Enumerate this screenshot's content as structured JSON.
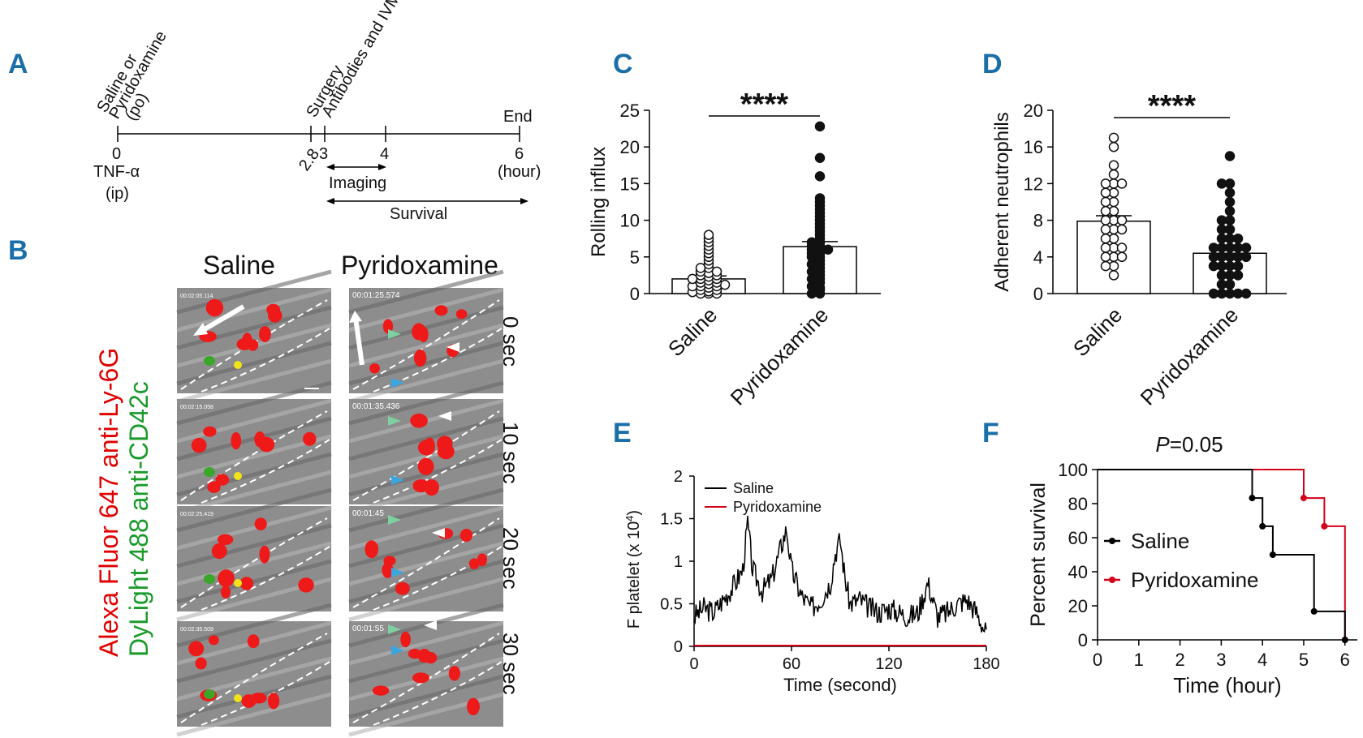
{
  "panel_letters": {
    "a": "A",
    "b": "B",
    "c": "C",
    "d": "D",
    "e": "E",
    "f": "F"
  },
  "timeline": {
    "top_labels": {
      "treat1": "Saline or",
      "treat2": "Pyridoxamine",
      "treat3": "(po)",
      "surgery": "Surgery",
      "antibodies": "Antibodies and IVM",
      "end": "End"
    },
    "ticks": [
      "0",
      "2.8",
      "3",
      "4",
      "6"
    ],
    "unit": "(hour)",
    "tnf": "TNF-α",
    "ip": "(ip)",
    "imaging": "Imaging",
    "survival": "Survival"
  },
  "microscopy": {
    "col_saline": "Saline",
    "col_pyridoxamine": "Pyridoxamine",
    "rows": [
      "0 sec",
      "10 sec",
      "20 sec",
      "30 sec"
    ],
    "stain_red": "Alexa Fluor 647 anti-Ly-6G",
    "stain_green": "DyLight 488 anti-CD42c",
    "stamps_saline": [
      "00:02:05.114",
      "00:02:15.058",
      "00:02:25.419",
      "00:02:35.509"
    ],
    "stamps_pyridoxamine": [
      "00:01:25.574",
      "00:01:35.436",
      "00:01:45",
      "00:01:55"
    ]
  },
  "chart_data": [
    {
      "panel": "C",
      "type": "bar",
      "categories": [
        "Saline",
        "Pyridoxamine"
      ],
      "values": [
        2.0,
        6.4
      ],
      "sem": [
        0.4,
        0.7
      ],
      "ylabel": "Rolling influx",
      "ylim": [
        0,
        25
      ],
      "yticks": [
        "0",
        "5",
        "10",
        "15",
        "20",
        "25"
      ],
      "significance": "****",
      "points": {
        "Saline": [
          0.0,
          0.0,
          0.0,
          0.2,
          0.3,
          0.5,
          0.5,
          0.8,
          1.0,
          1.0,
          1.0,
          1.2,
          1.3,
          1.5,
          1.5,
          1.8,
          2.0,
          2.0,
          2.0,
          2.3,
          2.5,
          2.5,
          2.8,
          3.0,
          3.0,
          3.5,
          3.5,
          4.0,
          4.5,
          5.0,
          5.5,
          6.0,
          6.5,
          7.0,
          7.5,
          8.0
        ],
        "Pyridoxamine": [
          0.0,
          0.0,
          0.5,
          0.8,
          1.0,
          1.5,
          2.0,
          2.0,
          2.5,
          3.0,
          3.0,
          3.5,
          4.0,
          4.0,
          4.5,
          5.0,
          5.0,
          5.5,
          5.5,
          6.0,
          6.0,
          6.0,
          6.5,
          6.5,
          7.0,
          7.0,
          7.5,
          8.0,
          8.5,
          9.0,
          9.5,
          10.0,
          10.5,
          11.0,
          11.5,
          12.0,
          12.5,
          13.0,
          16.0,
          18.5,
          22.8
        ]
      }
    },
    {
      "panel": "D",
      "type": "bar",
      "categories": [
        "Saline",
        "Pyridoxamine"
      ],
      "values": [
        7.9,
        4.4
      ],
      "sem": [
        0.6,
        0.5
      ],
      "ylabel": "Adherent neutrophils",
      "ylim": [
        0,
        20
      ],
      "yticks": [
        "0",
        "4",
        "8",
        "12",
        "16",
        "20"
      ],
      "significance": "****",
      "points": {
        "Saline": [
          2.0,
          3.0,
          3.0,
          4.0,
          4.0,
          4.0,
          5.0,
          5.0,
          5.0,
          6.0,
          6.0,
          7.0,
          7.0,
          7.0,
          8.0,
          8.0,
          8.0,
          9.0,
          9.0,
          10.0,
          10.0,
          11.0,
          11.0,
          12.0,
          12.0,
          12.0,
          13.0,
          14.0,
          16.0,
          17.0
        ],
        "Pyridoxamine": [
          0.0,
          0.0,
          0.0,
          0.0,
          0.0,
          1.0,
          1.0,
          2.0,
          2.0,
          2.0,
          3.0,
          3.0,
          3.0,
          3.0,
          4.0,
          4.0,
          4.0,
          4.0,
          4.0,
          5.0,
          5.0,
          5.0,
          5.0,
          5.0,
          6.0,
          6.0,
          6.0,
          7.0,
          7.0,
          8.0,
          8.0,
          9.0,
          10.0,
          11.0,
          12.0,
          12.0,
          15.0
        ]
      }
    },
    {
      "panel": "E",
      "type": "line",
      "xlabel": "Time  (second)",
      "ylabel": "F platelet",
      "ylabel_scale": "(x 10",
      "ylabel_exp": "4",
      "xlim": [
        0,
        180
      ],
      "ylim": [
        0,
        2
      ],
      "xticks": [
        "0",
        "60",
        "120",
        "180"
      ],
      "yticks": [
        "0",
        "0.5",
        "1",
        "1.5",
        "2"
      ],
      "legend": [
        "Saline",
        "Pyridoxamine"
      ],
      "series": [
        {
          "name": "Saline",
          "color": "#000000",
          "x": [
            0,
            6,
            12,
            18,
            24,
            30,
            33,
            36,
            42,
            48,
            54,
            57,
            60,
            66,
            72,
            78,
            84,
            87,
            90,
            93,
            96,
            102,
            108,
            114,
            120,
            126,
            132,
            138,
            144,
            150,
            156,
            162,
            168,
            174,
            180
          ],
          "y": [
            0.35,
            0.45,
            0.4,
            0.55,
            0.7,
            0.9,
            1.45,
            0.9,
            0.65,
            0.8,
            1.2,
            1.38,
            0.9,
            0.6,
            0.45,
            0.55,
            0.75,
            1.1,
            1.25,
            0.8,
            0.5,
            0.55,
            0.45,
            0.4,
            0.45,
            0.4,
            0.35,
            0.4,
            0.75,
            0.35,
            0.4,
            0.5,
            0.55,
            0.4,
            0.15
          ]
        },
        {
          "name": "Pyridoxamine",
          "color": "#d4001a",
          "x": [
            0,
            30,
            60,
            90,
            120,
            150,
            180
          ],
          "y": [
            0.01,
            0.01,
            0.01,
            0.01,
            0.01,
            0.01,
            0.01
          ]
        }
      ]
    },
    {
      "panel": "F",
      "type": "line",
      "title_italic": "P",
      "title_rest": "=0.05",
      "xlabel": "Time  (hour)",
      "ylabel": "Percent survival",
      "xlim": [
        0,
        6.3
      ],
      "ylim": [
        0,
        100
      ],
      "xticks": [
        "0",
        "1",
        "2",
        "3",
        "4",
        "5",
        "6"
      ],
      "yticks": [
        "0",
        "20",
        "40",
        "60",
        "80",
        "100"
      ],
      "legend": [
        "Saline",
        "Pyridoxamine"
      ],
      "series": [
        {
          "name": "Saline",
          "color": "#000000",
          "steps": [
            [
              0,
              100
            ],
            [
              3.75,
              100
            ],
            [
              3.75,
              83.3
            ],
            [
              4.0,
              83.3
            ],
            [
              4.0,
              66.7
            ],
            [
              4.25,
              66.7
            ],
            [
              4.25,
              50
            ],
            [
              5.25,
              50
            ],
            [
              5.25,
              16.7
            ],
            [
              6.0,
              16.7
            ],
            [
              6.0,
              0
            ]
          ],
          "marks": [
            [
              3.75,
              83.3
            ],
            [
              4.0,
              66.7
            ],
            [
              4.25,
              50
            ],
            [
              5.25,
              16.7
            ],
            [
              6.0,
              0
            ]
          ]
        },
        {
          "name": "Pyridoxamine",
          "color": "#d4001a",
          "steps": [
            [
              0,
              100
            ],
            [
              5.0,
              100
            ],
            [
              5.0,
              83.3
            ],
            [
              5.5,
              83.3
            ],
            [
              5.5,
              66.7
            ],
            [
              6.0,
              66.7
            ],
            [
              6.0,
              0
            ]
          ],
          "marks": [
            [
              5.0,
              83.3
            ],
            [
              5.5,
              66.7
            ],
            [
              6.0,
              0
            ]
          ]
        }
      ]
    }
  ]
}
